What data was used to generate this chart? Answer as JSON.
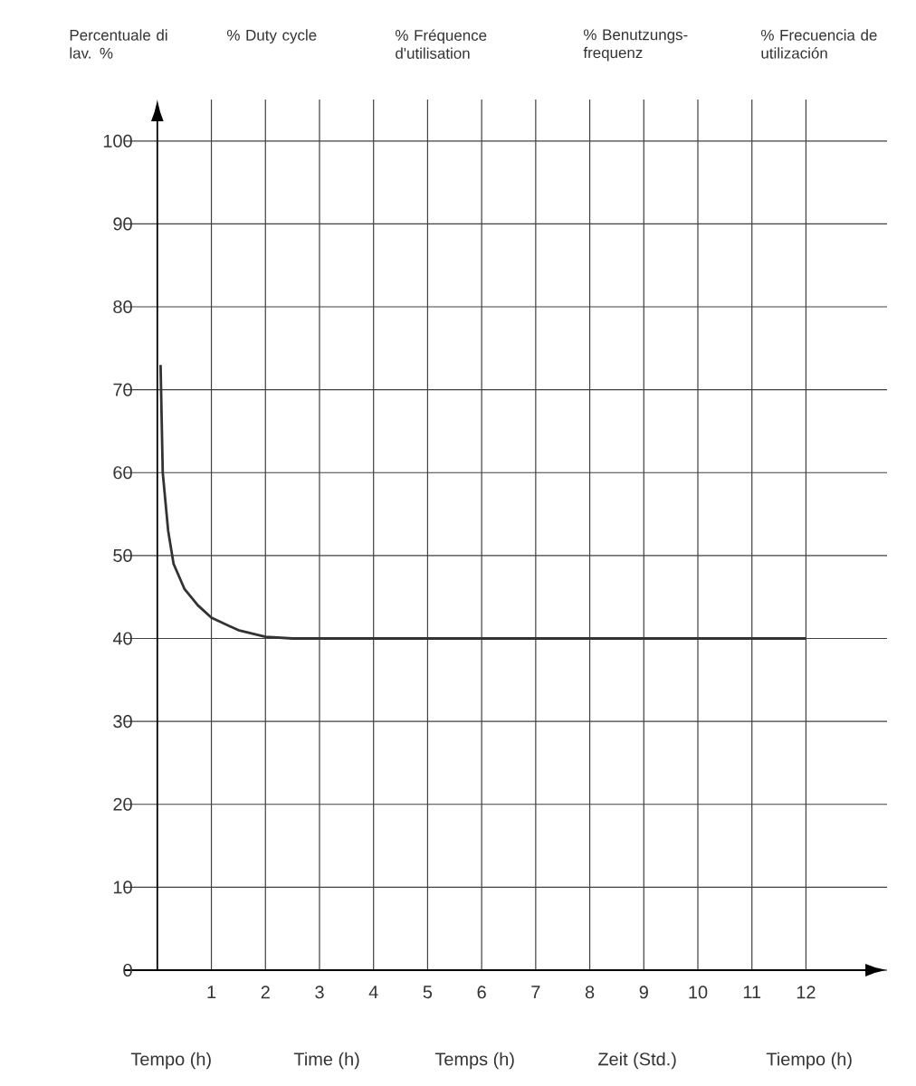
{
  "chart_data": {
    "type": "line",
    "ylabel": "Percentuale di lav. %",
    "xlabel": "Tempo (h)",
    "annotations": [
      "% Duty cycle",
      "% Fréquence d'utilisation",
      "% Benutzungs-frequenz",
      "% Frecuencia de utilización",
      "Time (h)",
      "Temps (h)",
      "Zeit (Std.)",
      "Tiempo (h)"
    ],
    "x": [
      0.06,
      0.1,
      0.2,
      0.3,
      0.5,
      0.75,
      1,
      1.5,
      2,
      2.5,
      3,
      12
    ],
    "series": [
      {
        "color": "#333333",
        "values": [
          73,
          60,
          53,
          49,
          46,
          44,
          42.5,
          41,
          40.2,
          40,
          40,
          40
        ]
      }
    ],
    "xlim": [
      -0.6,
      13.5
    ],
    "ylim": [
      0,
      105
    ],
    "xticks": [
      1,
      2,
      3,
      4,
      5,
      6,
      7,
      8,
      9,
      10,
      11,
      12
    ],
    "yticks": [
      0,
      10,
      20,
      30,
      40,
      50,
      60,
      70,
      80,
      90,
      100
    ],
    "grid": true,
    "marker": "none",
    "line_style": "solid"
  }
}
